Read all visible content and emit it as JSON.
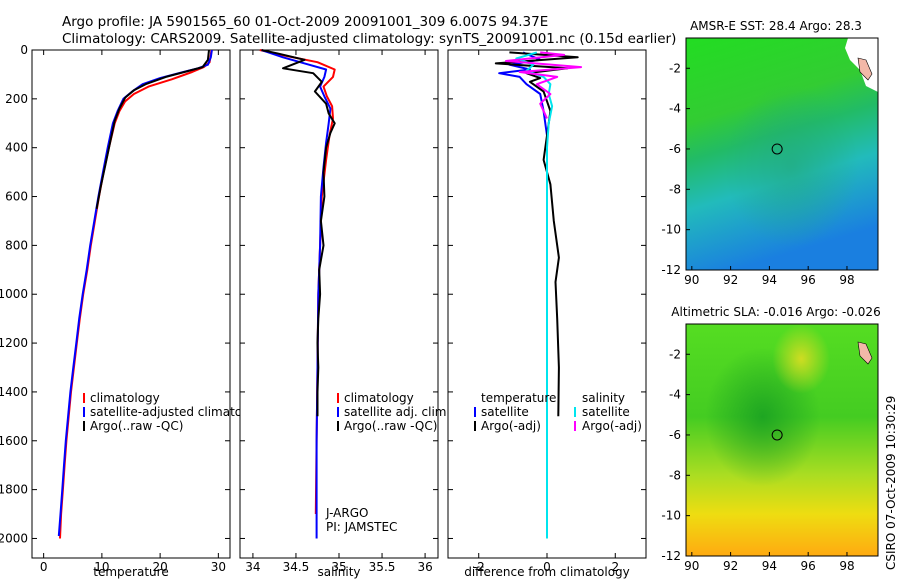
{
  "header": {
    "line1": "Argo profile: JA 5901565_60 01-Oct-2009 20091001_309 6.007S 94.37E",
    "line2": "Climatology: CARS2009. Satellite-adjusted climatology: synTS_20091001.nc (0.15d earlier)"
  },
  "side_label": "CSIRO 07-Oct-2009 10:30:29",
  "colors": {
    "climatology": "#ff0000",
    "satellite": "#0000ff",
    "argo": "#000000",
    "salinity_sat": "#00e5ee",
    "salinity_argo": "#ff00ff"
  },
  "chart_data": [
    {
      "type": "line",
      "id": "temperature",
      "xlabel": "temperature",
      "ylabel": "",
      "xlim": [
        -2,
        32
      ],
      "ylim": [
        0,
        2080
      ],
      "x_ticks": [
        0,
        10,
        20,
        30
      ],
      "y_ticks": [
        0,
        200,
        400,
        600,
        800,
        1000,
        1200,
        1400,
        1600,
        1800,
        2000
      ],
      "legend": [
        "climatology",
        "satellite-adjusted climatology",
        "Argo(..raw -QC)"
      ],
      "series": [
        {
          "name": "climatology",
          "color": "#ff0000",
          "points": [
            [
              28.8,
              0
            ],
            [
              28.7,
              20
            ],
            [
              28.5,
              50
            ],
            [
              27.5,
              70
            ],
            [
              25.5,
              90
            ],
            [
              22,
              120
            ],
            [
              18,
              150
            ],
            [
              15.5,
              180
            ],
            [
              14,
              210
            ],
            [
              13,
              250
            ],
            [
              12.2,
              300
            ],
            [
              11.2,
              400
            ],
            [
              10.3,
              500
            ],
            [
              9.5,
              600
            ],
            [
              8.8,
              700
            ],
            [
              8.1,
              800
            ],
            [
              7.5,
              900
            ],
            [
              6.8,
              1000
            ],
            [
              6.2,
              1100
            ],
            [
              5.7,
              1200
            ],
            [
              5.2,
              1300
            ],
            [
              4.7,
              1400
            ],
            [
              4.3,
              1500
            ],
            [
              3.9,
              1600
            ],
            [
              3.6,
              1700
            ],
            [
              3.3,
              1800
            ],
            [
              3.0,
              1900
            ],
            [
              2.8,
              2000
            ]
          ]
        },
        {
          "name": "satellite-adjusted climatology",
          "color": "#0000ff",
          "points": [
            [
              28.9,
              0
            ],
            [
              28.7,
              30
            ],
            [
              28.2,
              60
            ],
            [
              26.5,
              75
            ],
            [
              24,
              90
            ],
            [
              20,
              115
            ],
            [
              17,
              140
            ],
            [
              15.2,
              170
            ],
            [
              13.7,
              200
            ],
            [
              12.7,
              250
            ],
            [
              11.9,
              300
            ],
            [
              11,
              400
            ],
            [
              10.2,
              500
            ],
            [
              9.4,
              600
            ],
            [
              8.7,
              700
            ],
            [
              8,
              800
            ],
            [
              7.4,
              900
            ],
            [
              6.7,
              1000
            ],
            [
              6.1,
              1100
            ],
            [
              5.6,
              1200
            ],
            [
              5.1,
              1300
            ],
            [
              4.6,
              1400
            ],
            [
              4.2,
              1500
            ],
            [
              3.8,
              1600
            ],
            [
              3.5,
              1700
            ],
            [
              3.2,
              1800
            ],
            [
              2.9,
              1900
            ],
            [
              2.6,
              1990
            ]
          ]
        },
        {
          "name": "Argo(..raw -QC)",
          "color": "#000000",
          "points": [
            [
              28.4,
              0
            ],
            [
              28.2,
              40
            ],
            [
              27.3,
              70
            ],
            [
              24.5,
              88
            ],
            [
              21,
              110
            ],
            [
              17.5,
              140
            ],
            [
              15.5,
              165
            ],
            [
              14,
              195
            ],
            [
              13,
              240
            ],
            [
              12.2,
              290
            ],
            [
              11.4,
              380
            ],
            [
              10.6,
              470
            ],
            [
              9.8,
              560
            ],
            [
              9.1,
              650
            ]
          ]
        }
      ]
    },
    {
      "type": "line",
      "id": "salinity",
      "xlabel": "salinity",
      "xlim": [
        33.85,
        36.15
      ],
      "ylim": [
        0,
        2080
      ],
      "x_ticks": [
        34,
        34.5,
        35,
        35.5,
        36
      ],
      "legend": [
        "climatology",
        "satellite adj. clim.",
        "Argo(..raw -QC)"
      ],
      "annotations": [
        "J-ARGO",
        "PI: JAMSTEC"
      ],
      "series": [
        {
          "name": "climatology",
          "color": "#ff0000",
          "points": [
            [
              34.08,
              0
            ],
            [
              34.4,
              25
            ],
            [
              34.75,
              50
            ],
            [
              34.95,
              80
            ],
            [
              34.93,
              110
            ],
            [
              34.82,
              150
            ],
            [
              34.86,
              190
            ],
            [
              34.92,
              230
            ],
            [
              34.93,
              280
            ],
            [
              34.89,
              350
            ],
            [
              34.85,
              450
            ],
            [
              34.8,
              600
            ],
            [
              34.78,
              800
            ],
            [
              34.76,
              1000
            ],
            [
              34.75,
              1300
            ],
            [
              34.74,
              1600
            ],
            [
              34.73,
              1900
            ]
          ]
        },
        {
          "name": "satellite adj. clim.",
          "color": "#0000ff",
          "points": [
            [
              34.1,
              0
            ],
            [
              34.35,
              30
            ],
            [
              34.6,
              55
            ],
            [
              34.85,
              80
            ],
            [
              34.83,
              110
            ],
            [
              34.78,
              150
            ],
            [
              34.83,
              190
            ],
            [
              34.9,
              240
            ],
            [
              34.88,
              300
            ],
            [
              34.85,
              380
            ],
            [
              34.82,
              480
            ],
            [
              34.79,
              600
            ],
            [
              34.78,
              800
            ],
            [
              34.76,
              1000
            ],
            [
              34.75,
              1300
            ],
            [
              34.74,
              1600
            ],
            [
              34.74,
              2000
            ]
          ]
        },
        {
          "name": "Argo(..raw -QC)",
          "color": "#000000",
          "points": [
            [
              34.1,
              0
            ],
            [
              34.3,
              15
            ],
            [
              34.6,
              40
            ],
            [
              34.35,
              75
            ],
            [
              34.7,
              95
            ],
            [
              34.8,
              130
            ],
            [
              34.72,
              170
            ],
            [
              34.85,
              220
            ],
            [
              34.88,
              260
            ],
            [
              34.95,
              300
            ],
            [
              34.9,
              340
            ],
            [
              34.85,
              400
            ],
            [
              34.82,
              500
            ],
            [
              34.83,
              600
            ],
            [
              34.79,
              700
            ],
            [
              34.82,
              800
            ],
            [
              34.77,
              900
            ],
            [
              34.78,
              1000
            ],
            [
              34.76,
              1100
            ],
            [
              34.75,
              1200
            ],
            [
              34.76,
              1300
            ],
            [
              34.75,
              1400
            ],
            [
              34.75,
              1500
            ]
          ]
        }
      ]
    },
    {
      "type": "line",
      "id": "difference",
      "xlabel": "difference from climatology",
      "xlim": [
        -2.9,
        2.9
      ],
      "ylim": [
        0,
        2080
      ],
      "x_ticks": [
        -2,
        0,
        2
      ],
      "legend_left_title": "temperature",
      "legend_right_title": "salinity",
      "legend_left": [
        "satellite",
        "Argo(-adj)"
      ],
      "legend_right": [
        "satellite",
        "Argo(-adj)"
      ],
      "series": [
        {
          "name": "temperature satellite",
          "color": "#0000ff",
          "points": [
            [
              -0.7,
              10
            ],
            [
              -0.2,
              40
            ],
            [
              -1.1,
              60
            ],
            [
              -0.5,
              80
            ],
            [
              -1.4,
              95
            ],
            [
              -0.8,
              110
            ],
            [
              -0.6,
              140
            ],
            [
              -0.2,
              180
            ],
            [
              -0.1,
              250
            ],
            [
              0,
              350
            ],
            [
              0,
              600
            ],
            [
              0,
              1000
            ],
            [
              0,
              1400
            ],
            [
              0,
              1800
            ],
            [
              0,
              2000
            ]
          ]
        },
        {
          "name": "temperature Argo(-adj)",
          "color": "#000000",
          "points": [
            [
              -1.1,
              10
            ],
            [
              0.9,
              30
            ],
            [
              -1.5,
              55
            ],
            [
              0.6,
              75
            ],
            [
              -0.6,
              95
            ],
            [
              -0.2,
              115
            ],
            [
              -0.5,
              130
            ],
            [
              -0.1,
              170
            ],
            [
              0.1,
              250
            ],
            [
              0,
              350
            ],
            [
              -0.1,
              450
            ],
            [
              0.1,
              550
            ],
            [
              0.2,
              700
            ],
            [
              0.35,
              850
            ],
            [
              0.25,
              950
            ],
            [
              0.3,
              1100
            ],
            [
              0.35,
              1300
            ],
            [
              0.33,
              1500
            ]
          ]
        },
        {
          "name": "salinity satellite",
          "color": "#00e5ee",
          "points": [
            [
              -0.3,
              10
            ],
            [
              -0.9,
              35
            ],
            [
              -0.4,
              60
            ],
            [
              -0.6,
              85
            ],
            [
              -0.1,
              110
            ],
            [
              0.1,
              140
            ],
            [
              0.05,
              180
            ],
            [
              0.15,
              230
            ],
            [
              0.05,
              300
            ],
            [
              0,
              400
            ],
            [
              0,
              600
            ],
            [
              0,
              900
            ],
            [
              0,
              1300
            ],
            [
              0,
              1700
            ],
            [
              0,
              2000
            ]
          ]
        },
        {
          "name": "salinity Argo(-adj)",
          "color": "#ff00ff",
          "points": [
            [
              -0.2,
              10
            ],
            [
              0.5,
              20
            ],
            [
              -1.2,
              45
            ],
            [
              1.0,
              70
            ],
            [
              -0.8,
              90
            ],
            [
              0.3,
              110
            ],
            [
              -0.3,
              140
            ],
            [
              0.1,
              180
            ],
            [
              -0.2,
              220
            ],
            [
              0,
              280
            ]
          ]
        }
      ]
    }
  ],
  "maps": [
    {
      "title": "AMSR-E SST: 28.4 Argo: 28.3",
      "x_ticks": [
        90,
        92,
        94,
        96,
        98
      ],
      "y_ticks": [
        -2,
        -4,
        -6,
        -8,
        -10,
        -12
      ],
      "marker": [
        94.4,
        -6.0
      ]
    },
    {
      "title": "Altimetric SLA: -0.016 Argo: -0.026",
      "x_ticks": [
        90,
        92,
        94,
        96,
        98
      ],
      "y_ticks": [
        -2,
        -4,
        -6,
        -8,
        -10,
        -12
      ],
      "marker": [
        94.4,
        -6.0
      ]
    }
  ]
}
